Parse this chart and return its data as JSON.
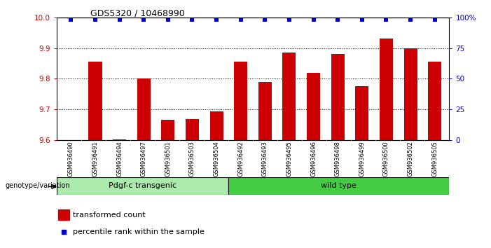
{
  "title": "GDS5320 / 10468990",
  "samples": [
    "GSM936490",
    "GSM936491",
    "GSM936494",
    "GSM936497",
    "GSM936501",
    "GSM936503",
    "GSM936504",
    "GSM936492",
    "GSM936493",
    "GSM936495",
    "GSM936496",
    "GSM936498",
    "GSM936499",
    "GSM936500",
    "GSM936502",
    "GSM936505"
  ],
  "bar_values": [
    9.601,
    9.855,
    9.603,
    9.8,
    9.667,
    9.668,
    9.693,
    9.855,
    9.79,
    9.885,
    9.82,
    9.88,
    9.775,
    9.93,
    9.9,
    9.855
  ],
  "percentile_values": [
    98,
    98,
    98,
    98,
    98,
    98,
    98,
    98,
    98,
    98,
    98,
    98,
    98,
    98,
    98,
    98
  ],
  "bar_color": "#cc0000",
  "percentile_color": "#0000cc",
  "ylim_left": [
    9.6,
    10.0
  ],
  "ylim_right": [
    0,
    100
  ],
  "yticks_left": [
    9.6,
    9.7,
    9.8,
    9.9,
    10.0
  ],
  "yticks_right": [
    0,
    25,
    50,
    75,
    100
  ],
  "ytick_labels_right": [
    "0",
    "25",
    "50",
    "75",
    "100%"
  ],
  "group1_label": "Pdgf-c transgenic",
  "group2_label": "wild type",
  "group1_color": "#aaeaaa",
  "group2_color": "#44cc44",
  "genotype_label": "genotype/variation",
  "legend_bar_label": "transformed count",
  "legend_dot_label": "percentile rank within the sample",
  "group1_count": 7,
  "group2_count": 9,
  "background_color": "#ffffff",
  "grid_color": "#000000",
  "tick_label_color_left": "#cc0000",
  "tick_label_color_right": "#0000cc",
  "xticklabel_bg": "#dddddd",
  "title_fontsize": 9,
  "bar_width": 0.55
}
